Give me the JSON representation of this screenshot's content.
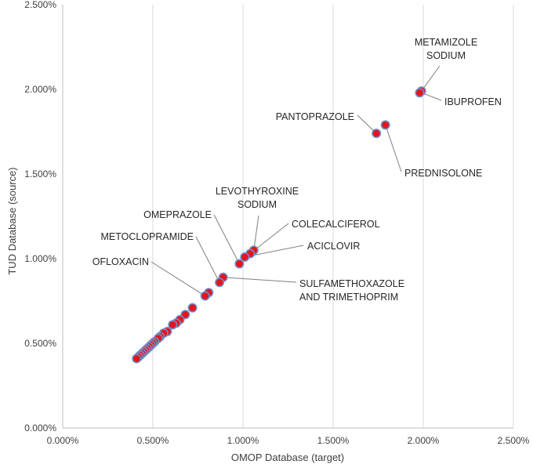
{
  "chart_data": {
    "type": "scatter",
    "title": "",
    "xlabel": "OMOP Database (target)",
    "ylabel": "TUD Database (source)",
    "xlim": [
      0.0,
      2.5
    ],
    "ylim": [
      0.0,
      2.5
    ],
    "x_unit": "%",
    "y_unit": "%",
    "x_ticks": [
      "0.000%",
      "0.500%",
      "1.000%",
      "1.500%",
      "2.000%",
      "2.500%"
    ],
    "y_ticks": [
      "0.000%",
      "0.500%",
      "1.000%",
      "1.500%",
      "2.000%",
      "2.500%"
    ],
    "x_tick_values": [
      0.0,
      0.5,
      1.0,
      1.5,
      2.0,
      2.5
    ],
    "y_tick_values": [
      0.0,
      0.5,
      1.0,
      1.5,
      2.0,
      2.5
    ],
    "grid": "vertical",
    "legend": "none",
    "marker_fill": "#e8141c",
    "marker_stroke": "#6d8fc9",
    "points": [
      {
        "x": 1.99,
        "y": 1.99
      },
      {
        "x": 1.98,
        "y": 1.98
      },
      {
        "x": 1.79,
        "y": 1.79
      },
      {
        "x": 1.74,
        "y": 1.74
      },
      {
        "x": 1.06,
        "y": 1.05
      },
      {
        "x": 1.04,
        "y": 1.03
      },
      {
        "x": 1.01,
        "y": 1.01
      },
      {
        "x": 0.98,
        "y": 0.97
      },
      {
        "x": 0.89,
        "y": 0.89
      },
      {
        "x": 0.87,
        "y": 0.86
      },
      {
        "x": 0.81,
        "y": 0.8
      },
      {
        "x": 0.79,
        "y": 0.78
      },
      {
        "x": 0.72,
        "y": 0.71
      },
      {
        "x": 0.68,
        "y": 0.67
      },
      {
        "x": 0.65,
        "y": 0.64
      },
      {
        "x": 0.63,
        "y": 0.62
      },
      {
        "x": 0.61,
        "y": 0.61
      },
      {
        "x": 0.58,
        "y": 0.57
      },
      {
        "x": 0.56,
        "y": 0.56
      },
      {
        "x": 0.54,
        "y": 0.54
      },
      {
        "x": 0.53,
        "y": 0.53
      },
      {
        "x": 0.51,
        "y": 0.51
      },
      {
        "x": 0.5,
        "y": 0.5
      },
      {
        "x": 0.49,
        "y": 0.49
      },
      {
        "x": 0.48,
        "y": 0.48
      },
      {
        "x": 0.47,
        "y": 0.47
      },
      {
        "x": 0.46,
        "y": 0.46
      },
      {
        "x": 0.45,
        "y": 0.45
      },
      {
        "x": 0.44,
        "y": 0.44
      },
      {
        "x": 0.43,
        "y": 0.43
      },
      {
        "x": 0.42,
        "y": 0.42
      },
      {
        "x": 0.41,
        "y": 0.41
      }
    ],
    "annotations": [
      {
        "lines": [
          "METAMIZOLE",
          "SODIUM"
        ],
        "anchor": "middle",
        "point": {
          "x": 1.99,
          "y": 1.99
        }
      },
      {
        "lines": [
          "IBUPROFEN"
        ],
        "anchor": "start",
        "point": {
          "x": 1.99,
          "y": 1.98
        }
      },
      {
        "lines": [
          "PANTOPRAZOLE"
        ],
        "anchor": "end",
        "point": {
          "x": 1.74,
          "y": 1.74
        }
      },
      {
        "lines": [
          "PREDNISOLONE"
        ],
        "anchor": "start",
        "point": {
          "x": 1.79,
          "y": 1.79
        }
      },
      {
        "lines": [
          "LEVOTHYROXINE",
          "SODIUM"
        ],
        "anchor": "middle",
        "point": {
          "x": 1.06,
          "y": 1.05
        }
      },
      {
        "lines": [
          "COLECALCIFEROL"
        ],
        "anchor": "start",
        "point": {
          "x": 1.04,
          "y": 1.03
        }
      },
      {
        "lines": [
          "OMEPRAZOLE"
        ],
        "anchor": "end",
        "point": {
          "x": 0.98,
          "y": 0.97
        }
      },
      {
        "lines": [
          "ACICLOVIR"
        ],
        "anchor": "start",
        "point": {
          "x": 1.01,
          "y": 1.01
        }
      },
      {
        "lines": [
          "METOCLOPRAMIDE"
        ],
        "anchor": "end",
        "point": {
          "x": 0.87,
          "y": 0.86
        }
      },
      {
        "lines": [
          "SULFAMETHOXAZOLE",
          "AND TRIMETHOPRIM"
        ],
        "anchor": "start",
        "point": {
          "x": 0.89,
          "y": 0.89
        }
      },
      {
        "lines": [
          "OFLOXACIN"
        ],
        "anchor": "end",
        "point": {
          "x": 0.79,
          "y": 0.78
        }
      }
    ]
  }
}
